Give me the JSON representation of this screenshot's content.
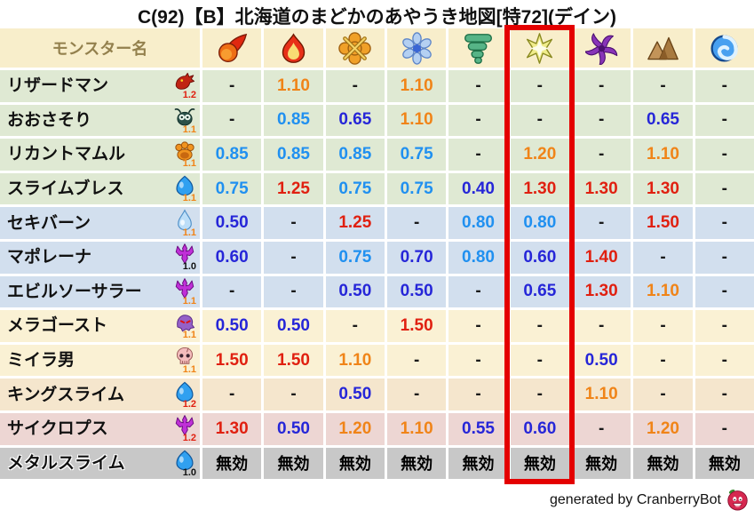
{
  "title": "C(92)【B】北海道のまどかのあやうき地図[特72](デイン)",
  "header": {
    "monster_name_label": "モンスター名",
    "elements": [
      {
        "icon": "fireball-icon"
      },
      {
        "icon": "flame-icon"
      },
      {
        "icon": "explosion-icon"
      },
      {
        "icon": "snowflake-icon"
      },
      {
        "icon": "tornado-icon"
      },
      {
        "icon": "spark-icon",
        "highlighted": true
      },
      {
        "icon": "dark-pinwheel-icon"
      },
      {
        "icon": "mountain-icon"
      },
      {
        "icon": "wave-icon"
      }
    ],
    "highlighted_column_index": 5
  },
  "rows": [
    {
      "name": "リザードマン",
      "icon": "dragon-icon",
      "level": "1.2",
      "row_color": "green",
      "values": [
        "-",
        "1.10",
        "-",
        "1.10",
        "-",
        "-",
        "-",
        "-",
        "-"
      ]
    },
    {
      "name": "おおさそり",
      "icon": "bug-icon",
      "level": "1.1",
      "row_color": "green",
      "values": [
        "-",
        "0.85",
        "0.65",
        "1.10",
        "-",
        "-",
        "-",
        "0.65",
        "-"
      ]
    },
    {
      "name": "リカントマムル",
      "icon": "paw-icon",
      "level": "1.1",
      "row_color": "green",
      "values": [
        "0.85",
        "0.85",
        "0.85",
        "0.75",
        "-",
        "1.20",
        "-",
        "1.10",
        "-"
      ]
    },
    {
      "name": "スライムブレス",
      "icon": "slime-icon",
      "level": "1.1",
      "row_color": "green",
      "values": [
        "0.75",
        "1.25",
        "0.75",
        "0.75",
        "0.40",
        "1.30",
        "1.30",
        "1.30",
        "-"
      ]
    },
    {
      "name": "セキバーン",
      "icon": "drop-icon",
      "level": "1.1",
      "row_color": "blue",
      "values": [
        "0.50",
        "-",
        "1.25",
        "-",
        "0.80",
        "0.80",
        "-",
        "1.50",
        "-"
      ]
    },
    {
      "name": "マポレーナ",
      "icon": "trident-icon",
      "level": "1.0",
      "row_color": "blue",
      "values": [
        "0.60",
        "-",
        "0.75",
        "0.70",
        "0.80",
        "0.60",
        "1.40",
        "-",
        "-"
      ]
    },
    {
      "name": "エビルソーサラー",
      "icon": "trident-icon",
      "level": "1.1",
      "row_color": "blue",
      "values": [
        "-",
        "-",
        "0.50",
        "0.50",
        "-",
        "0.65",
        "1.30",
        "1.10",
        "-"
      ]
    },
    {
      "name": "メラゴースト",
      "icon": "ghost-icon",
      "level": "1.1",
      "row_color": "cream",
      "values": [
        "0.50",
        "0.50",
        "-",
        "1.50",
        "-",
        "-",
        "-",
        "-",
        "-"
      ]
    },
    {
      "name": "ミイラ男",
      "icon": "skull-icon",
      "level": "1.1",
      "row_color": "cream",
      "values": [
        "1.50",
        "1.50",
        "1.10",
        "-",
        "-",
        "-",
        "0.50",
        "-",
        "-"
      ]
    },
    {
      "name": "キングスライム",
      "icon": "slime-icon",
      "level": "1.2",
      "row_color": "peach",
      "values": [
        "-",
        "-",
        "0.50",
        "-",
        "-",
        "-",
        "1.10",
        "-",
        "-"
      ]
    },
    {
      "name": "サイクロプス",
      "icon": "trident-icon",
      "level": "1.2",
      "row_color": "pink",
      "values": [
        "1.30",
        "0.50",
        "1.20",
        "1.10",
        "0.55",
        "0.60",
        "-",
        "1.20",
        "-"
      ]
    },
    {
      "name": "メタルスライム",
      "icon": "slime-icon",
      "level": "1.0",
      "row_color": "gray",
      "values": [
        "無効",
        "無効",
        "無効",
        "無効",
        "無効",
        "無効",
        "無効",
        "無効",
        "無効"
      ]
    }
  ],
  "immune_label": "無効",
  "footer": {
    "credit": "generated by CranberryBot",
    "icon": "cranberry-icon"
  },
  "colors": {
    "header_bg": "#f8eecb",
    "highlight_box": "#e40000",
    "rows": {
      "green": "#dfe9d3",
      "blue": "#d2dfee",
      "cream": "#faf1d4",
      "peach": "#f5e6cd",
      "pink": "#edd6d3",
      "gray": "#c8c8c8"
    },
    "values": {
      "strong_weakness_red": "#e02010",
      "weakness_orange": "#f08418",
      "resist_light_blue": "#2090f0",
      "strong_resist_dark_blue": "#2626d8",
      "dash": "#1a1a1a",
      "immune": "#000000"
    },
    "levels": {
      "1.0": "#111111",
      "1.1": "#f08418",
      "1.2": "#e02010"
    }
  }
}
